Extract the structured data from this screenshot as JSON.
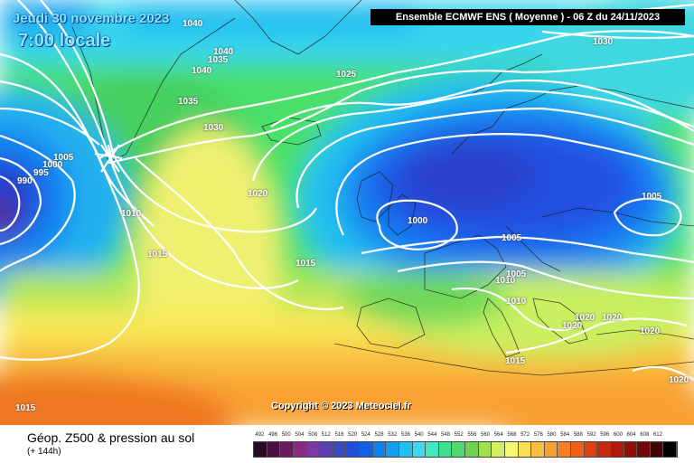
{
  "header": {
    "date": "Jeudi 30 novembre 2023",
    "time": "7:00 locale",
    "model": "Ensemble ECMWF ENS  ( Moyenne )  -  06 Z du 24/11/2023"
  },
  "footer": {
    "title": "Géop. Z500 & pression au sol",
    "lead": "(+ 144h)"
  },
  "copyright": "Copyright © 2023 Meteociel.fr",
  "isobar_labels": {
    "l1040a": "1040",
    "l1040b": "1040",
    "l1040c": "1040",
    "l1035a": "1035",
    "l1035b": "1035",
    "l1030a": "1030",
    "l1030b": "1030",
    "l1025": "1025",
    "l1020a": "1020",
    "l1020b": "1020",
    "l1020c": "1020",
    "l1020d": "1020",
    "l1020e": "1020",
    "l1020f": "1020",
    "l1015a": "1015",
    "l1015b": "1015",
    "l1015c": "1015",
    "l1015d": "1015",
    "l1010a": "1010",
    "l1010b": "1010",
    "l1010c": "1010",
    "l1005a": "1005",
    "l1005b": "1005",
    "l1005c": "1005",
    "l1005d": "1005",
    "l1000a": "1000",
    "l1000b": "1000",
    "l995": "995",
    "l990": "990"
  },
  "scale": {
    "labels": [
      "492",
      "496",
      "500",
      "504",
      "508",
      "512",
      "516",
      "520",
      "524",
      "528",
      "532",
      "536",
      "540",
      "544",
      "548",
      "552",
      "556",
      "560",
      "564",
      "568",
      "572",
      "576",
      "580",
      "584",
      "588",
      "592",
      "596",
      "600",
      "604",
      "608",
      "612"
    ],
    "colors": [
      "#2a0a24",
      "#4a1040",
      "#6a1a60",
      "#8a2a80",
      "#7a3aa0",
      "#5a40b0",
      "#3a4ac0",
      "#2050d8",
      "#1060e8",
      "#1080f0",
      "#10a0f0",
      "#20c0f0",
      "#40d8f0",
      "#40e8c0",
      "#40e090",
      "#50d870",
      "#70d050",
      "#a0e050",
      "#d0f060",
      "#f8f870",
      "#f8e050",
      "#f8c040",
      "#f8a030",
      "#f88020",
      "#f06018",
      "#e04010",
      "#c82a10",
      "#b01808",
      "#901008",
      "#700808",
      "#400404"
    ],
    "colors_extra": [
      "#000000"
    ]
  }
}
